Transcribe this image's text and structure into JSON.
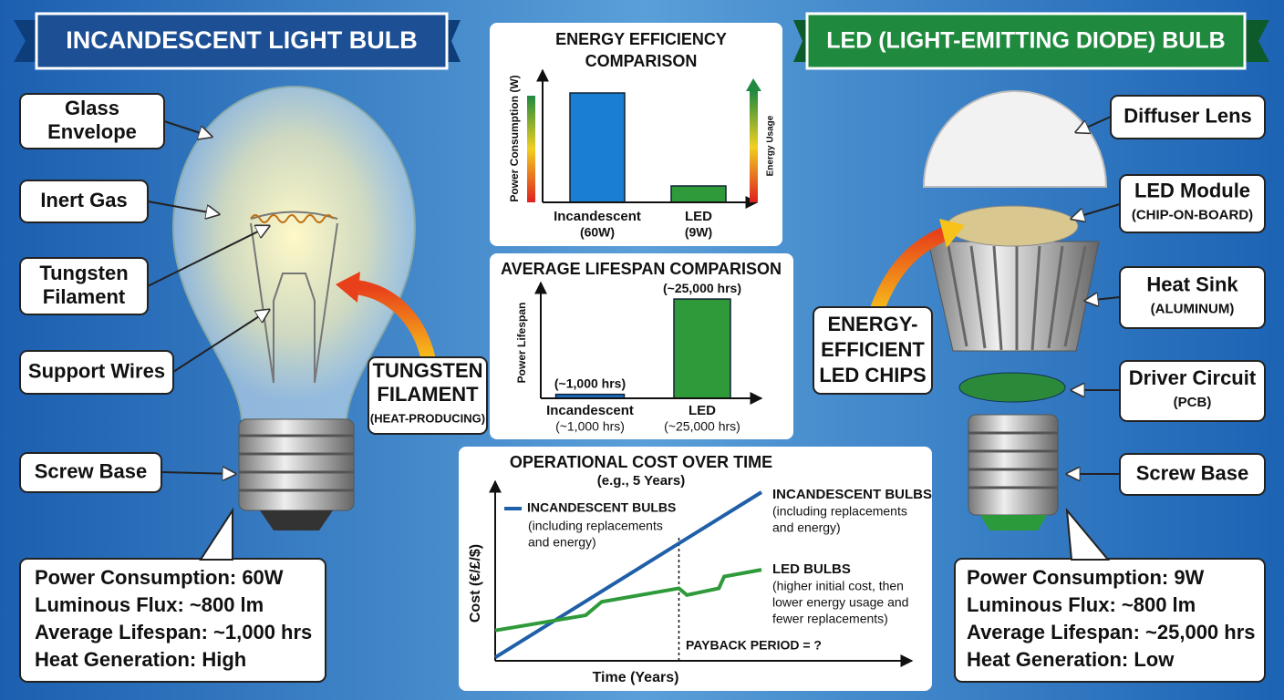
{
  "left": {
    "title": "INCANDESCENT LIGHT BULB",
    "callouts": [
      [
        "Glass",
        "Envelope"
      ],
      [
        "Inert Gas"
      ],
      [
        "Tungsten",
        "Filament"
      ],
      [
        "Support Wires"
      ],
      [
        "Screw Base"
      ]
    ],
    "highlight": [
      "TUNGSTEN",
      "FILAMENT",
      "(HEAT-PRODUCING)"
    ],
    "specs": [
      "Power Consumption: 60W",
      "Luminous Flux: ~800 lm",
      "Average Lifespan: ~1,000 hrs",
      "Heat Generation: High"
    ]
  },
  "right": {
    "title": "LED (LIGHT-EMITTING DIODE) BULB",
    "callouts": [
      [
        "Diffuser Lens"
      ],
      [
        "LED Module",
        "(CHIP-ON-BOARD)"
      ],
      [
        "Heat Sink",
        "(ALUMINUM)"
      ],
      [
        "Driver Circuit",
        "(PCB)"
      ],
      [
        "Screw Base"
      ]
    ],
    "highlight": [
      "ENERGY-",
      "EFFICIENT",
      "LED CHIPS"
    ],
    "specs": [
      "Power Consumption: 9W",
      "Luminous Flux: ~800 lm",
      "Average Lifespan: ~25,000 hrs",
      "Heat Generation: Low"
    ]
  },
  "chart_data": [
    {
      "type": "bar",
      "title": [
        "ENERGY EFFICIENCY",
        "COMPARISON"
      ],
      "y_label": "Power Consumption (W)",
      "side_label": "Energy Usage",
      "categories": [
        "Incandescent",
        "LED"
      ],
      "values": [
        60,
        9
      ],
      "value_labels": [
        "(60W)",
        "(9W)"
      ],
      "colors": [
        "#1a7fd0",
        "#2e9a3a"
      ],
      "ylim": [
        0,
        70
      ]
    },
    {
      "type": "bar",
      "title": [
        "AVERAGE LIFESPAN COMPARISON"
      ],
      "y_label": "Power Lifespan",
      "categories": [
        "Incandescent",
        "LED"
      ],
      "values": [
        1000,
        25000
      ],
      "value_labels": [
        "(~1,000 hrs)",
        "(~25,000 hrs)"
      ],
      "colors": [
        "#1a6fc0",
        "#2e9a3a"
      ],
      "ylim": [
        0,
        28000
      ]
    },
    {
      "type": "line",
      "title": [
        "OPERATIONAL COST OVER TIME",
        "(e.g., 5 Years)"
      ],
      "x_label": "Time (Years)",
      "y_label": "Cost (€/£/$)",
      "xlim": [
        0,
        5
      ],
      "ylim": [
        0,
        10
      ],
      "series": [
        {
          "name": "INCANDESCENT BULBS",
          "note": [
            "(including replacements",
            "and energy)"
          ],
          "color": "#1f5fa8",
          "x": [
            0,
            5
          ],
          "values": [
            0.2,
            10
          ]
        },
        {
          "name": "LED BULBS",
          "note": [
            "(higher initial cost, then",
            "lower energy usage and",
            "fewer replacements)"
          ],
          "color": "#2e9a3a",
          "x": [
            0,
            1.7,
            2.0,
            3.45,
            3.6,
            4.2,
            4.3,
            5
          ],
          "values": [
            1.8,
            2.7,
            3.5,
            4.3,
            3.9,
            4.3,
            5.0,
            5.4
          ]
        }
      ],
      "annotation": "PAYBACK PERIOD = ?",
      "payback_x": 3.45
    }
  ]
}
